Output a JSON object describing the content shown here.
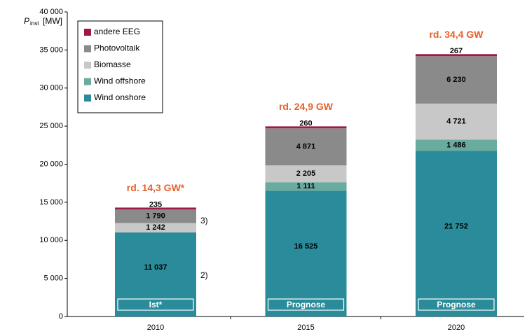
{
  "chart_data": {
    "type": "stacked_bar",
    "ylabel": "P",
    "ylabel_sub": "inst",
    "ylabel_unit": "[MW]",
    "categories": [
      "2010",
      "2015",
      "2020"
    ],
    "series": [
      {
        "name": "Wind onshore",
        "color": "#2a8c9a",
        "values": [
          11037,
          16525,
          21752
        ],
        "value_labels": [
          "11 037",
          "16 525",
          "21 752"
        ]
      },
      {
        "name": "Wind offshore",
        "color": "#6aaba0",
        "values": [
          0,
          1111,
          1486
        ],
        "value_labels": [
          null,
          "1 111",
          "1 486"
        ]
      },
      {
        "name": "Biomasse",
        "color": "#c8c8c8",
        "values": [
          1242,
          2205,
          4721
        ],
        "value_labels": [
          "1 242",
          "2 205",
          "4 721"
        ]
      },
      {
        "name": "Photovoltaik",
        "color": "#8a8a8a",
        "values": [
          1790,
          4871,
          6230
        ],
        "value_labels": [
          "1 790",
          "4 871",
          "6 230"
        ]
      },
      {
        "name": "andere EEG",
        "color": "#a0174a",
        "values": [
          235,
          260,
          267
        ]
      }
    ],
    "totals": [
      "rd. 14,3 GW*",
      "rd. 24,9 GW",
      "rd. 34,4 GW"
    ],
    "bar_labels": [
      "Ist*",
      "Prognose",
      "Prognose"
    ],
    "footnotes": [
      "2)",
      "3)"
    ],
    "ylim": [
      0,
      40000
    ],
    "yticks": [
      0,
      {
        "value": 5000,
        "label": "5 000"
      },
      {
        "value": 10000,
        "label": "10 000"
      },
      {
        "value": 15000,
        "label": "15 000"
      },
      {
        "value": 20000,
        "label": "20 000"
      },
      {
        "value": 25000,
        "label": "25 000"
      },
      {
        "value": 30000,
        "label": "30 000"
      },
      {
        "value": 35000,
        "label": "35 000"
      },
      {
        "value": 40000,
        "label": "40 000"
      }
    ],
    "legend": "upper left"
  }
}
